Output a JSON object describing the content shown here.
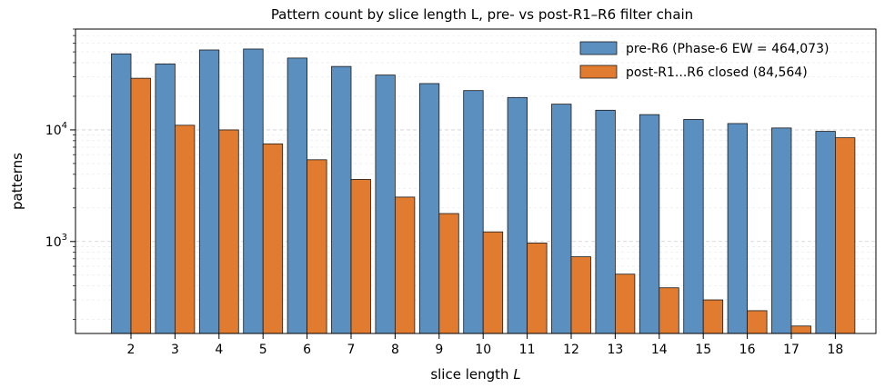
{
  "chart_data": {
    "type": "bar",
    "title": "Pattern count by slice length L, pre- vs post-R1–R6 filter chain",
    "xlabel_text": "slice length ",
    "xlabel_var": "L",
    "ylabel": "patterns",
    "y_scale": "log",
    "ylim": [
      150,
      80000
    ],
    "grid": true,
    "legend_position": "top-right",
    "categories": [
      "2",
      "3",
      "4",
      "5",
      "6",
      "7",
      "8",
      "9",
      "10",
      "11",
      "12",
      "13",
      "14",
      "15",
      "16",
      "17",
      "18"
    ],
    "series": [
      {
        "name": "pre-R6 (Phase-6 EW = 464,073)",
        "color": "#5a8fc0",
        "values": [
          48000,
          39000,
          52000,
          53000,
          44000,
          37000,
          31000,
          26000,
          22500,
          19500,
          17000,
          15000,
          13700,
          12400,
          11400,
          10400,
          9700
        ]
      },
      {
        "name": "post-R1...R6 closed (84,564)",
        "color": "#e07b30",
        "values": [
          29000,
          11000,
          10000,
          7500,
          5400,
          3600,
          2500,
          1780,
          1220,
          970,
          730,
          510,
          385,
          300,
          240,
          175,
          8500
        ]
      }
    ],
    "y_ticks": [
      {
        "value": 1000,
        "base": "10",
        "exp": "3"
      },
      {
        "value": 10000,
        "base": "10",
        "exp": "4"
      }
    ]
  }
}
